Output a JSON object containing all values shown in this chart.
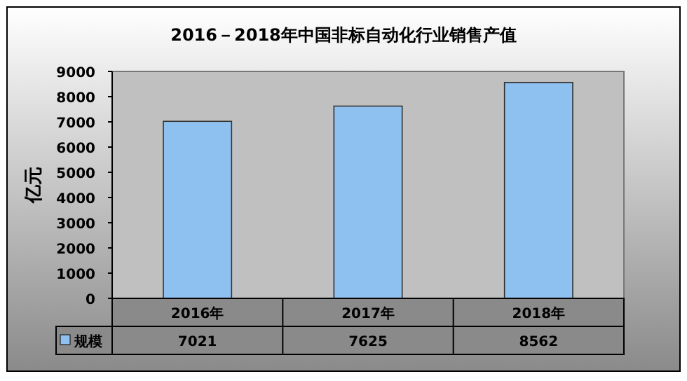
{
  "chart_data": {
    "type": "bar",
    "title": "2016－2018年中国非标自动化行业销售产值",
    "ylabel": "亿元",
    "categories": [
      "2016年",
      "2017年",
      "2018年"
    ],
    "series": [
      {
        "name": "规模",
        "color": "#8fc1f0",
        "values": [
          7021,
          7625,
          8562
        ]
      }
    ],
    "ylim": [
      0,
      9000
    ],
    "yticks": [
      0,
      1000,
      2000,
      3000,
      4000,
      5000,
      6000,
      7000,
      8000,
      9000
    ],
    "grid": false,
    "data_labels": true,
    "legend": "bottom left"
  }
}
